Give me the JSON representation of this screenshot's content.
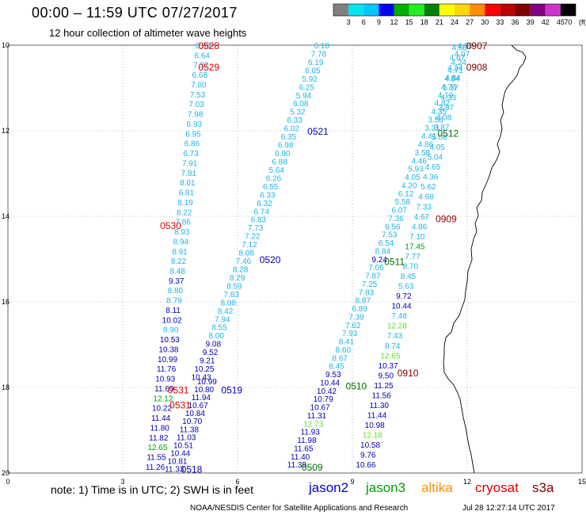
{
  "title": "00:00 – 11:59 UTC 07/27/2017",
  "subtitle": "12 hour collection of altimeter wave heights",
  "colorbar": {
    "unit_label": "(ft)",
    "labels": [
      "3",
      "6",
      "9",
      "12",
      "15",
      "18",
      "21",
      "24",
      "27",
      "30",
      "33",
      "36",
      "39",
      "42",
      "45",
      "70"
    ],
    "colors": [
      "#808080",
      "#00e5ee",
      "#00c8ff",
      "#0000ff",
      "#00b000",
      "#22ee22",
      "#008000",
      "#ffff00",
      "#ffd700",
      "#ff8c00",
      "#ff0000",
      "#c00000",
      "#800000",
      "#800080",
      "#cc33cc",
      "#000000"
    ]
  },
  "axes": {
    "lat_ticks": [
      "10",
      "12",
      "14",
      "16",
      "18",
      "20"
    ],
    "lon_ticks": [
      "0",
      "3",
      "6",
      "9",
      "12",
      "15"
    ]
  },
  "wave_colors": {
    "cyan": "#1fb4e6",
    "blue": "#0000b4",
    "green": "#00a000",
    "lightgreen": "#66dd33"
  },
  "passes": [
    {
      "label": "0528",
      "color": "#e00000",
      "lat": 10.0,
      "lon": 5.25
    },
    {
      "label": "0529",
      "color": "#e00000",
      "lat": 10.5,
      "lon": 5.25
    },
    {
      "label": "0530",
      "color": "#e00000",
      "lat": 14.2,
      "lon": 4.25
    },
    {
      "label": "0531",
      "color": "#e00000",
      "lat": 18.05,
      "lon": 4.45
    },
    {
      "label": "0531",
      "color": "#e00000",
      "lat": 18.4,
      "lon": 4.5
    },
    {
      "label": "0521",
      "color": "#0000b4",
      "lat": 12.0,
      "lon": 8.1
    },
    {
      "label": "0520",
      "color": "#0000b4",
      "lat": 15.0,
      "lon": 6.85
    },
    {
      "label": "0519",
      "color": "#0000b4",
      "lat": 18.05,
      "lon": 5.85
    },
    {
      "label": "0518",
      "color": "#0000b4",
      "lat": 19.9,
      "lon": 4.8
    },
    {
      "label": "0512",
      "color": "#007000",
      "lat": 12.05,
      "lon": 11.5
    },
    {
      "label": "0511",
      "color": "#007000",
      "lat": 15.05,
      "lon": 10.1
    },
    {
      "label": "0510",
      "color": "#007000",
      "lat": 17.95,
      "lon": 9.1
    },
    {
      "label": "0509",
      "color": "#007000",
      "lat": 19.85,
      "lon": 7.95
    },
    {
      "label": "0907",
      "color": "#800000",
      "lat": 10.0,
      "lon": 12.25
    },
    {
      "label": "0908",
      "color": "#800000",
      "lat": 10.5,
      "lon": 12.25
    },
    {
      "label": "0909",
      "color": "#800000",
      "lat": 14.05,
      "lon": 11.45
    },
    {
      "label": "0910",
      "color": "#800000",
      "lat": 17.65,
      "lon": 10.45
    }
  ],
  "tracks": [
    {
      "name": "track-A",
      "lat_start": 10.0,
      "lat_end": 19.85,
      "lon_start": 5.1,
      "lon_end": 3.85,
      "values": [
        "6.90",
        "6.64",
        "7.37",
        "6.68",
        "7.80",
        "7.53",
        "7.03",
        "7.98",
        "6.93",
        "6.95",
        "6.86",
        "6.73",
        "7.91",
        "7.81",
        "8.01",
        "6.81",
        "8.19",
        "8.22",
        "7.86",
        "8.93",
        "8.94",
        "8.91",
        "8.22",
        "8.48",
        "9.37",
        "8.80",
        "8.79",
        "8.11",
        "10.02",
        "8.90",
        "10.53",
        "10.38",
        "10.99",
        "11.76",
        "10.93",
        "11.60",
        "12.12",
        "10.22",
        "11.44",
        "11.80",
        "11.82",
        "12.65",
        "11.55",
        "11.26"
      ],
      "colors": [
        "c",
        "c",
        "c",
        "c",
        "c",
        "c",
        "c",
        "c",
        "c",
        "c",
        "c",
        "c",
        "c",
        "c",
        "c",
        "c",
        "c",
        "c",
        "c",
        "c",
        "c",
        "c",
        "c",
        "c",
        "b",
        "c",
        "c",
        "b",
        "b",
        "c",
        "b",
        "b",
        "b",
        "b",
        "b",
        "b",
        "g",
        "b",
        "b",
        "b",
        "b",
        "g",
        "b",
        "b"
      ]
    },
    {
      "name": "track-B",
      "lat_start": 17.85,
      "lat_end": 19.9,
      "lon_start": 5.2,
      "lon_end": 4.35,
      "values": [
        "10.99",
        "10.80",
        "11.94",
        "10.67",
        "10.84",
        "10.70",
        "11.38",
        "11.03",
        "10.51",
        "10.44",
        "10.81",
        "11.33"
      ],
      "colors": [
        "b",
        "b",
        "b",
        "b",
        "b",
        "b",
        "b",
        "b",
        "b",
        "b",
        "b",
        "b"
      ]
    },
    {
      "name": "track-C",
      "lat_start": 10.0,
      "lat_end": 17.75,
      "lon_start": 8.2,
      "lon_end": 5.05,
      "values": [
        "6.18",
        "7.78",
        "6.19",
        "6.05",
        "5.92",
        "6.25",
        "5.94",
        "6.08",
        "5.32",
        "6.33",
        "6.02",
        "6.35",
        "6.98",
        "6.90",
        "6.88",
        "5.64",
        "6.26",
        "6.55",
        "6.33",
        "6.32",
        "6.74",
        "6.83",
        "7.73",
        "7.22",
        "7.12",
        "8.08",
        "7.46",
        "8.28",
        "8.29",
        "8.59",
        "7.83",
        "8.08",
        "8.42",
        "7.94",
        "8.55",
        "8.00",
        "9.08",
        "9.52",
        "9.21",
        "10.25",
        "10.43"
      ],
      "colors": [
        "c",
        "c",
        "c",
        "c",
        "c",
        "c",
        "c",
        "c",
        "c",
        "c",
        "c",
        "c",
        "c",
        "c",
        "c",
        "c",
        "c",
        "c",
        "c",
        "c",
        "c",
        "c",
        "c",
        "c",
        "c",
        "c",
        "c",
        "c",
        "c",
        "c",
        "c",
        "c",
        "c",
        "c",
        "c",
        "c",
        "b",
        "b",
        "b",
        "b",
        "b"
      ]
    },
    {
      "name": "track-D",
      "lat_start": 10.0,
      "lat_end": 19.8,
      "lon_start": 11.95,
      "lon_end": 7.55,
      "values": [
        "4.80",
        "4.07",
        "4.24",
        "4.71",
        "4.84",
        "4.76",
        "4.19",
        "4.82",
        "4.35",
        "3.58",
        "3.31",
        "4.41",
        "4.86",
        "3.58",
        "4.46",
        "5.93",
        "4.05",
        "4.20",
        "6.12",
        "5.58",
        "6.07",
        "7.36",
        "6.56",
        "7.53",
        "6.54",
        "8.84",
        "9.24",
        "7.06",
        "7.87",
        "7.25",
        "7.83",
        "8.87",
        "6.89",
        "7.39",
        "7.62",
        "7.93",
        "8.41",
        "8.60",
        "8.67",
        "8.45",
        "9.53",
        "10.44",
        "10.42",
        "10.79",
        "10.67",
        "11.31",
        "12.73",
        "11.93",
        "11.98",
        "11.65",
        "11.40",
        "11.39"
      ],
      "colors": [
        "c",
        "c",
        "c",
        "c",
        "c",
        "c",
        "c",
        "c",
        "c",
        "c",
        "c",
        "c",
        "c",
        "c",
        "c",
        "c",
        "c",
        "c",
        "c",
        "c",
        "c",
        "c",
        "c",
        "c",
        "c",
        "c",
        "b",
        "c",
        "c",
        "c",
        "c",
        "c",
        "c",
        "c",
        "c",
        "c",
        "c",
        "c",
        "c",
        "c",
        "b",
        "b",
        "b",
        "b",
        "b",
        "b",
        "l",
        "b",
        "b",
        "b",
        "b",
        "b"
      ]
    },
    {
      "name": "track-E",
      "lat_start": 10.05,
      "lat_end": 19.8,
      "lon_start": 11.8,
      "lon_end": 9.35,
      "values": [
        "4.60",
        "4.67",
        "4.24",
        "4.84",
        "5.17",
        "4.33",
        "3.87",
        "4.08",
        "3.87",
        "5.08",
        "4.05",
        "5.04",
        "4.65",
        "4.36",
        "5.62",
        "4.68",
        "7.33",
        "4.67",
        "4.86",
        "7.10",
        "17.45",
        "7.77",
        "8.70",
        "8.45",
        "5.63",
        "9.72",
        "10.44",
        "7.48",
        "12.28",
        "7.43",
        "8.74",
        "12.65",
        "10.37",
        "9.50",
        "11.25",
        "11.56",
        "11.30",
        "11.44",
        "10.98",
        "12.18",
        "10.58",
        "9.76",
        "10.66"
      ],
      "colors": [
        "c",
        "c",
        "c",
        "c",
        "c",
        "c",
        "c",
        "c",
        "c",
        "c",
        "c",
        "c",
        "c",
        "c",
        "c",
        "c",
        "c",
        "c",
        "c",
        "c",
        "g",
        "c",
        "c",
        "c",
        "c",
        "b",
        "b",
        "c",
        "l",
        "c",
        "c",
        "l",
        "b",
        "b",
        "b",
        "b",
        "b",
        "b",
        "b",
        "l",
        "b",
        "b",
        "b"
      ]
    }
  ],
  "note": "note: 1) Time is in UTC; 2) SWH is in feet",
  "satellites": [
    {
      "key": "jason2",
      "label": "jason2",
      "color": "#0000c8"
    },
    {
      "key": "jason3",
      "label": "jason3",
      "color": "#00a000"
    },
    {
      "key": "altika",
      "label": "altika",
      "color": "#ff8c00"
    },
    {
      "key": "cryosat",
      "label": "cryosat",
      "color": "#e00000"
    },
    {
      "key": "s3a",
      "label": "s3a",
      "color": "#800000"
    }
  ],
  "credit": "NOAA/NESDIS Center for Satellite Applications and Research",
  "timestamp": "Jul 28 12:27:14 UTC 2017"
}
